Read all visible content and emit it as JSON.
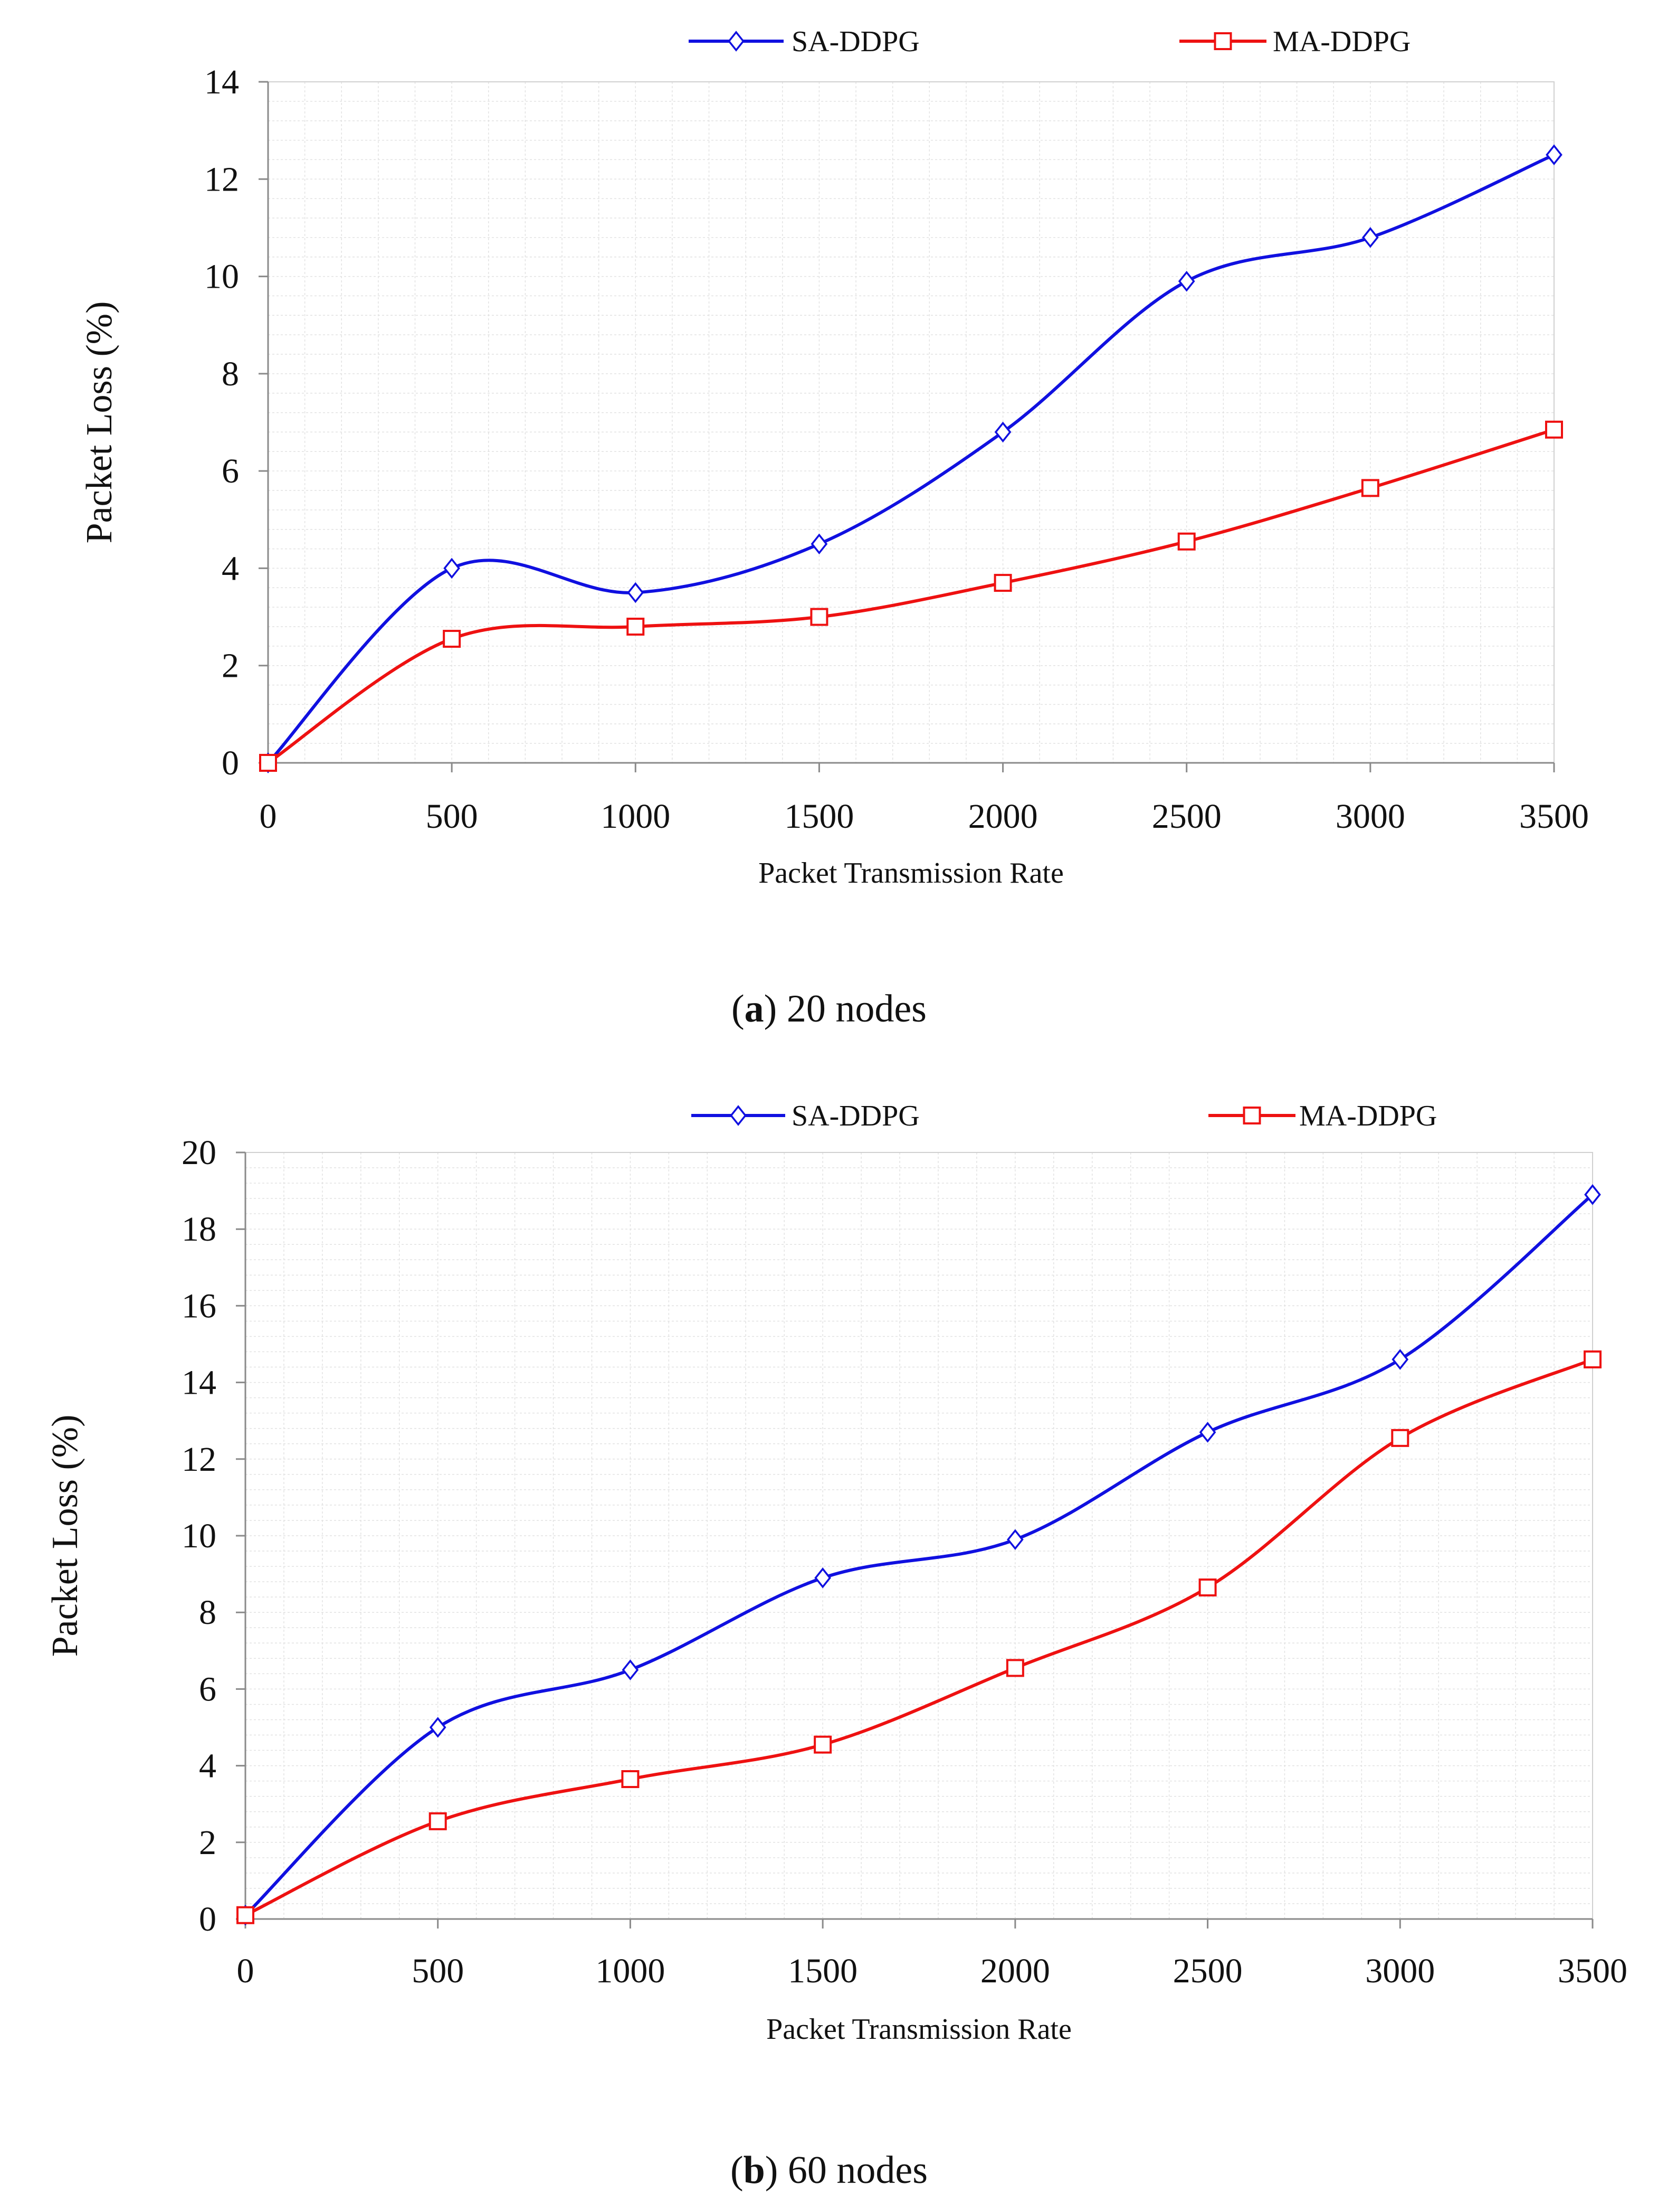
{
  "chart_data": [
    {
      "type": "line",
      "panel": "a",
      "caption_label": "a",
      "caption_text": ") 20 nodes",
      "caption_open": "(",
      "title": "",
      "xlabel": "Packet Transmission Rate",
      "ylabel": "Packet Loss (%)",
      "x": [
        0,
        500,
        1000,
        1500,
        2000,
        2500,
        3000,
        3500
      ],
      "x_ticks": [
        "0",
        "500",
        "1000",
        "1500",
        "2000",
        "2500",
        "3000",
        "3500"
      ],
      "y_ticks": [
        "0",
        "2",
        "4",
        "6",
        "8",
        "10",
        "12",
        "14"
      ],
      "xlim": [
        0,
        3500
      ],
      "ylim": [
        0,
        14
      ],
      "grid": true,
      "legend_position": "top",
      "series": [
        {
          "name": "SA-DDPG",
          "color": "#1010e0",
          "marker": "diamond",
          "values": [
            0,
            4.0,
            3.5,
            4.5,
            6.8,
            9.9,
            10.8,
            12.5
          ]
        },
        {
          "name": "MA-DDPG",
          "color": "#ee1111",
          "marker": "square",
          "values": [
            0,
            2.55,
            2.8,
            3.0,
            3.7,
            4.55,
            5.65,
            6.85
          ]
        }
      ]
    },
    {
      "type": "line",
      "panel": "b",
      "caption_label": "b",
      "caption_text": ") 60 nodes",
      "caption_open": "(",
      "title": "",
      "xlabel": "Packet Transmission Rate",
      "ylabel": "Packet Loss (%)",
      "x": [
        0,
        500,
        1000,
        1500,
        2000,
        2500,
        3000,
        3500
      ],
      "x_ticks": [
        "0",
        "500",
        "1000",
        "1500",
        "2000",
        "2500",
        "3000",
        "3500"
      ],
      "y_ticks": [
        "0",
        "2",
        "4",
        "6",
        "8",
        "10",
        "12",
        "14",
        "16",
        "18",
        "20"
      ],
      "xlim": [
        0,
        3500
      ],
      "ylim": [
        0,
        20
      ],
      "grid": true,
      "legend_position": "top",
      "series": [
        {
          "name": "SA-DDPG",
          "color": "#1010e0",
          "marker": "diamond",
          "values": [
            0.1,
            5.0,
            6.5,
            8.9,
            9.9,
            12.7,
            14.6,
            18.9
          ]
        },
        {
          "name": "MA-DDPG",
          "color": "#ee1111",
          "marker": "square",
          "values": [
            0.1,
            2.55,
            3.65,
            4.55,
            6.55,
            8.65,
            12.55,
            14.6
          ]
        }
      ]
    }
  ]
}
